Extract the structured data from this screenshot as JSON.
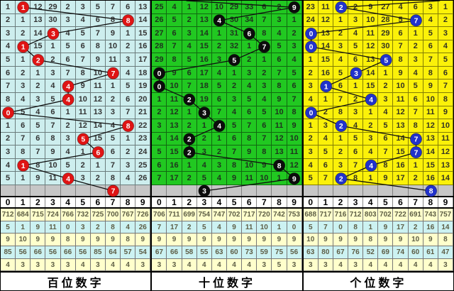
{
  "chart_data": {
    "type": "table",
    "title": "",
    "description_note": "lottery digit trend chart: 14 draw rows per panel, each cell = miss count, circle = drawn digit",
    "digit_headers": [
      "0",
      "1",
      "2",
      "3",
      "4",
      "5",
      "6",
      "7",
      "8",
      "9"
    ],
    "stats_row_colors": [
      "#ffffcc",
      "#ccf2f2",
      "#ffffcc",
      "#ccf2f2",
      "#ffffcc"
    ],
    "gray_row_color": "#c6c6c6",
    "line_color": "#101010",
    "panels": [
      {
        "label": "百位数字",
        "bg_color": "#cdeeee",
        "text_color": "#333333",
        "circle_color": "#df1414",
        "entry_top_col": null,
        "circle_cols": [
          1,
          8,
          3,
          1,
          2,
          7,
          4,
          4,
          0,
          8,
          5,
          6,
          1,
          4
        ],
        "tail_circle_col": 7,
        "grid": [
          [
            1,
            1,
            12,
            29,
            2,
            3,
            5,
            7,
            6,
            13
          ],
          [
            2,
            1,
            13,
            30,
            3,
            4,
            6,
            8,
            8,
            14
          ],
          [
            3,
            2,
            14,
            3,
            4,
            5,
            7,
            9,
            1,
            15
          ],
          [
            4,
            1,
            15,
            1,
            5,
            6,
            8,
            10,
            2,
            16
          ],
          [
            5,
            1,
            2,
            2,
            6,
            7,
            9,
            11,
            3,
            17
          ],
          [
            6,
            2,
            1,
            3,
            7,
            8,
            10,
            7,
            4,
            18
          ],
          [
            7,
            3,
            2,
            4,
            4,
            9,
            11,
            1,
            5,
            19
          ],
          [
            8,
            4,
            3,
            5,
            4,
            10,
            12,
            2,
            6,
            20
          ],
          [
            0,
            5,
            4,
            6,
            1,
            11,
            13,
            3,
            7,
            21
          ],
          [
            1,
            6,
            5,
            7,
            2,
            12,
            14,
            4,
            8,
            22
          ],
          [
            2,
            7,
            6,
            8,
            3,
            5,
            15,
            5,
            1,
            23
          ],
          [
            3,
            8,
            7,
            9,
            4,
            1,
            6,
            6,
            2,
            24
          ],
          [
            4,
            1,
            8,
            10,
            5,
            2,
            1,
            7,
            3,
            25
          ],
          [
            5,
            1,
            9,
            11,
            4,
            3,
            2,
            8,
            4,
            26
          ]
        ],
        "stats": [
          [
            712,
            684,
            715,
            724,
            766,
            732,
            725,
            700,
            767,
            726
          ],
          [
            5,
            1,
            9,
            11,
            0,
            3,
            2,
            8,
            4,
            26
          ],
          [
            9,
            10,
            9,
            9,
            8,
            9,
            9,
            9,
            8,
            9
          ],
          [
            85,
            56,
            66,
            56,
            66,
            56,
            85,
            64,
            57,
            54
          ],
          [
            4,
            3,
            3,
            3,
            3,
            4,
            3,
            4,
            4,
            3
          ]
        ]
      },
      {
        "label": "十位数字",
        "bg_color": "#21c821",
        "text_color": "#1e321e",
        "circle_color": "#0c0c0c",
        "entry_top_col": 2.3,
        "circle_cols": [
          9,
          4,
          6,
          7,
          5,
          0,
          0,
          2,
          3,
          4,
          2,
          2,
          8,
          9
        ],
        "tail_circle_col": 3,
        "grid": [
          [
            25,
            4,
            1,
            12,
            10,
            29,
            33,
            6,
            2,
            9
          ],
          [
            26,
            5,
            2,
            13,
            4,
            30,
            34,
            7,
            3,
            1
          ],
          [
            27,
            6,
            3,
            14,
            1,
            31,
            6,
            8,
            4,
            2
          ],
          [
            28,
            7,
            4,
            15,
            2,
            32,
            1,
            7,
            5,
            3
          ],
          [
            29,
            8,
            5,
            16,
            3,
            5,
            2,
            1,
            6,
            4
          ],
          [
            0,
            9,
            6,
            17,
            4,
            1,
            3,
            2,
            7,
            5
          ],
          [
            0,
            10,
            7,
            18,
            5,
            2,
            4,
            3,
            8,
            6
          ],
          [
            1,
            11,
            2,
            19,
            6,
            3,
            5,
            4,
            9,
            7
          ],
          [
            2,
            12,
            1,
            3,
            7,
            4,
            6,
            5,
            10,
            8
          ],
          [
            3,
            13,
            2,
            1,
            4,
            5,
            7,
            6,
            11,
            9
          ],
          [
            4,
            14,
            2,
            2,
            1,
            6,
            8,
            7,
            12,
            10
          ],
          [
            5,
            15,
            2,
            3,
            2,
            7,
            9,
            8,
            13,
            11
          ],
          [
            6,
            16,
            1,
            4,
            3,
            8,
            10,
            9,
            8,
            12
          ],
          [
            7,
            17,
            2,
            5,
            4,
            9,
            11,
            10,
            1,
            9
          ]
        ],
        "stats": [
          [
            706,
            711,
            699,
            754,
            747,
            702,
            717,
            720,
            742,
            753
          ],
          [
            7,
            17,
            2,
            5,
            4,
            9,
            11,
            10,
            1,
            0
          ],
          [
            9,
            9,
            9,
            9,
            9,
            9,
            9,
            9,
            9,
            9
          ],
          [
            67,
            66,
            58,
            55,
            63,
            60,
            73,
            59,
            75,
            56
          ],
          [
            3,
            3,
            4,
            4,
            4,
            4,
            4,
            3,
            5,
            3
          ]
        ]
      },
      {
        "label": "个位数字",
        "bg_color": "#fbf109",
        "text_color": "#333322",
        "circle_color": "#2132cb",
        "entry_top_col": 9.1,
        "circle_cols": [
          2,
          7,
          0,
          0,
          5,
          3,
          1,
          4,
          0,
          2,
          7,
          7,
          4,
          2
        ],
        "tail_circle_col": 8,
        "grid": [
          [
            23,
            11,
            2,
            2,
            9,
            27,
            4,
            6,
            3,
            1
          ],
          [
            24,
            12,
            1,
            3,
            10,
            28,
            5,
            7,
            4,
            2
          ],
          [
            0,
            13,
            2,
            4,
            11,
            29,
            6,
            1,
            5,
            3
          ],
          [
            0,
            14,
            3,
            5,
            12,
            30,
            7,
            2,
            6,
            4
          ],
          [
            1,
            15,
            4,
            6,
            13,
            5,
            8,
            3,
            7,
            5
          ],
          [
            2,
            16,
            5,
            3,
            14,
            1,
            9,
            4,
            8,
            6
          ],
          [
            3,
            1,
            6,
            1,
            15,
            2,
            10,
            5,
            9,
            7
          ],
          [
            4,
            1,
            7,
            2,
            4,
            3,
            11,
            6,
            10,
            8
          ],
          [
            0,
            2,
            8,
            3,
            1,
            4,
            12,
            7,
            11,
            9
          ],
          [
            1,
            3,
            2,
            4,
            2,
            5,
            13,
            8,
            12,
            10
          ],
          [
            2,
            4,
            1,
            5,
            3,
            6,
            14,
            7,
            13,
            11
          ],
          [
            3,
            5,
            2,
            6,
            4,
            7,
            15,
            7,
            14,
            12
          ],
          [
            4,
            6,
            3,
            7,
            4,
            8,
            16,
            1,
            15,
            13
          ],
          [
            5,
            7,
            2,
            8,
            1,
            9,
            17,
            2,
            16,
            14
          ]
        ],
        "stats": [
          [
            688,
            717,
            716,
            712,
            803,
            702,
            722,
            691,
            743,
            757
          ],
          [
            5,
            7,
            0,
            8,
            1,
            9,
            17,
            2,
            16,
            14
          ],
          [
            10,
            9,
            9,
            9,
            8,
            9,
            9,
            10,
            9,
            8
          ],
          [
            63,
            80,
            67,
            76,
            52,
            69,
            74,
            60,
            61,
            47
          ],
          [
            3,
            3,
            4,
            3,
            4,
            4,
            4,
            4,
            4,
            3
          ]
        ]
      }
    ]
  }
}
